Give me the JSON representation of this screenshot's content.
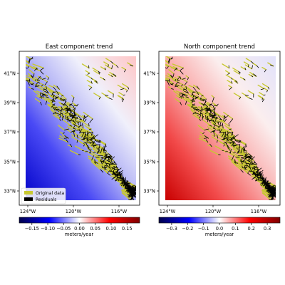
{
  "chart_data": [
    {
      "type": "heatmap",
      "title": "East component trend",
      "xticks": [
        "124°W",
        "120°W",
        "116°W"
      ],
      "yticks": [
        "33°N",
        "35°N",
        "37°N",
        "39°N",
        "41°N"
      ],
      "xlim": [
        -125.0,
        -114.6
      ],
      "ylim": [
        32.1,
        42.4
      ],
      "colorbar": {
        "label": "meters/year",
        "range": [
          -0.19,
          0.19
        ],
        "ticks": [
          "−0.15",
          "−0.10",
          "−0.05",
          "0.00",
          "0.05",
          "0.10",
          "0.15"
        ],
        "colormap": "seismic"
      },
      "legend": {
        "position": "lower-left",
        "entries": [
          {
            "label": "Original data",
            "color": "#c8c832"
          },
          {
            "label": "Residuals",
            "color": "#000000"
          }
        ]
      },
      "trend_field": "linear east-velocity trend, about −0.19 m/yr in the southwest corner to about 0.13 m/yr in the northeast corner"
    },
    {
      "type": "heatmap",
      "title": "North component trend",
      "xticks": [
        "124°W",
        "120°W",
        "116°W"
      ],
      "yticks": [
        "33°N",
        "35°N",
        "37°N",
        "39°N",
        "41°N"
      ],
      "xlim": [
        -125.0,
        -114.6
      ],
      "ylim": [
        32.1,
        42.4
      ],
      "colorbar": {
        "label": "meters/year",
        "range": [
          -0.38,
          0.38
        ],
        "ticks": [
          "−0.3",
          "−0.2",
          "−0.1",
          "0.0",
          "0.1",
          "0.2",
          "0.3"
        ],
        "colormap": "seismic"
      },
      "trend_field": "linear north-velocity trend, about 0.38 m/yr in the southwest corner to about −0.05 m/yr in the northeast corner"
    }
  ]
}
